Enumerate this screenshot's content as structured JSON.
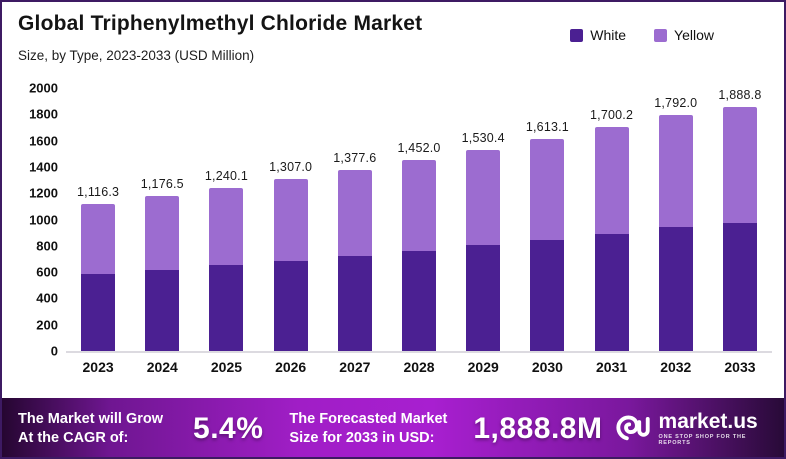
{
  "page": {
    "title": "Global Triphenylmethyl Chloride Market",
    "subtitle": "Size, by Type, 2023-2033 (USD Million)"
  },
  "legend": {
    "items": [
      {
        "label": "White",
        "color": "#4B2092"
      },
      {
        "label": "Yellow",
        "color": "#9C6CD0"
      }
    ]
  },
  "chart_data": {
    "type": "bar",
    "stacked": true,
    "title": "Global Triphenylmethyl Chloride Market",
    "subtitle": "Size, by Type, 2023-2033 (USD Million)",
    "unit": "USD Million",
    "categories": [
      "2023",
      "2024",
      "2025",
      "2026",
      "2027",
      "2028",
      "2029",
      "2030",
      "2031",
      "2032",
      "2033"
    ],
    "series": [
      {
        "name": "White",
        "color": "#4B2092",
        "values": [
          586.0,
          618.0,
          651.0,
          686.0,
          723.0,
          762.0,
          803.0,
          847.0,
          892.0,
          941.0,
          991.0
        ]
      },
      {
        "name": "Yellow",
        "color": "#9C6CD0",
        "values": [
          530.3,
          558.5,
          589.1,
          621.0,
          654.6,
          690.0,
          727.4,
          766.1,
          808.2,
          851.0,
          897.8
        ]
      }
    ],
    "totals": [
      1116.3,
      1176.5,
      1240.1,
      1307.0,
      1377.6,
      1452.0,
      1530.4,
      1613.1,
      1700.2,
      1792.0,
      1888.8
    ],
    "total_labels": [
      "1,116.3",
      "1,176.5",
      "1,240.1",
      "1,307.0",
      "1,377.6",
      "1,452.0",
      "1,530.4",
      "1,613.1",
      "1,700.2",
      "1,792.0",
      "1,888.8"
    ],
    "ylim": [
      0,
      2000
    ],
    "yticks": [
      2000,
      1800,
      1600,
      1400,
      1200,
      1000,
      800,
      600,
      400,
      200,
      0
    ],
    "grid": false,
    "legend_position": "top-right"
  },
  "banner": {
    "left_line1": "The Market will Grow",
    "left_line2": "At the CAGR of:",
    "cagr_value": "5.4%",
    "mid_line1": "The Forecasted Market",
    "mid_line2": "Size for 2033 in USD:",
    "forecast_value": "1,888.8M",
    "brand_name": "market.us",
    "brand_tagline": "ONE STOP SHOP FOR THE REPORTS"
  }
}
